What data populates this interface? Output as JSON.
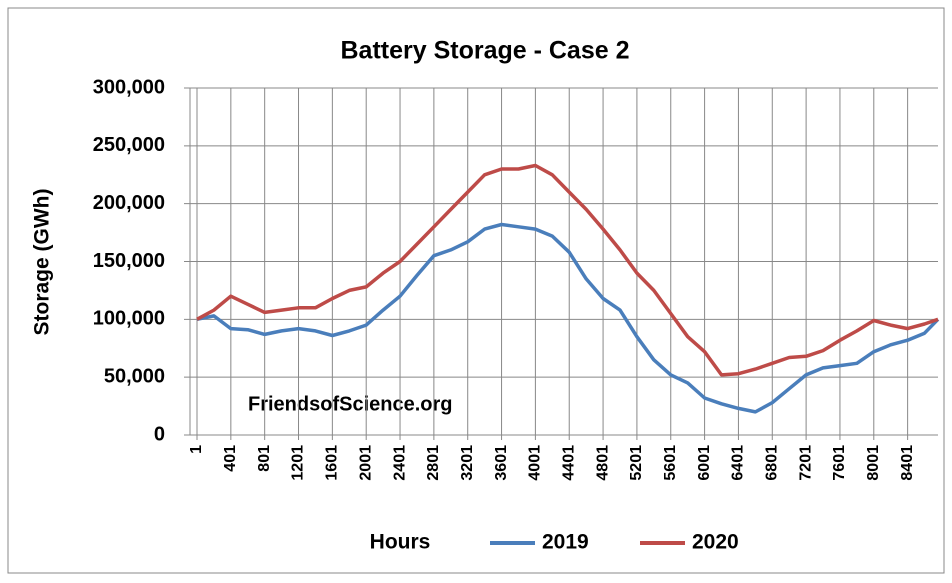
{
  "chart_data": {
    "type": "line",
    "title": "Battery Storage - Case 2",
    "x_label": "Hours",
    "y_label": "Storage (GWh)",
    "annotation": "FriendsofScience.org",
    "x": [
      1,
      201,
      401,
      601,
      801,
      1001,
      1201,
      1401,
      1601,
      1801,
      2001,
      2201,
      2401,
      2601,
      2801,
      3001,
      3201,
      3401,
      3601,
      3801,
      4001,
      4201,
      4401,
      4601,
      4801,
      5001,
      5201,
      5401,
      5601,
      5801,
      6001,
      6201,
      6401,
      6601,
      6801,
      7001,
      7201,
      7401,
      7601,
      7801,
      8001,
      8201,
      8401,
      8601,
      8760
    ],
    "series": [
      {
        "name": "2019",
        "color": "#4a7ebb",
        "values": [
          100000,
          103000,
          92000,
          91000,
          87000,
          90000,
          92000,
          90000,
          86000,
          90000,
          95000,
          108000,
          120000,
          138000,
          155000,
          160000,
          167000,
          178000,
          182000,
          180000,
          178000,
          172000,
          158000,
          135000,
          118000,
          108000,
          85000,
          65000,
          52000,
          45000,
          32000,
          27000,
          23000,
          20000,
          28000,
          40000,
          52000,
          58000,
          60000,
          62000,
          72000,
          78000,
          82000,
          88000,
          100000
        ]
      },
      {
        "name": "2020",
        "color": "#be4b48",
        "values": [
          100000,
          108000,
          120000,
          113000,
          106000,
          108000,
          110000,
          110000,
          118000,
          125000,
          128000,
          140000,
          150000,
          165000,
          180000,
          195000,
          210000,
          225000,
          230000,
          230000,
          233000,
          225000,
          210000,
          195000,
          178000,
          160000,
          140000,
          125000,
          105000,
          85000,
          72000,
          52000,
          53000,
          57000,
          62000,
          67000,
          68000,
          73000,
          82000,
          90000,
          99000,
          95000,
          92000,
          96000,
          100000
        ]
      }
    ],
    "xlim": [
      1,
      8760
    ],
    "xticks": [
      1,
      401,
      801,
      1201,
      1601,
      2001,
      2401,
      2801,
      3201,
      3601,
      4001,
      4401,
      4801,
      5201,
      5601,
      6001,
      6401,
      6801,
      7201,
      7601,
      8001,
      8401
    ],
    "ylim": [
      0,
      300000
    ],
    "yticks": [
      0,
      {
        "value": 50000,
        "label": "50,000"
      },
      {
        "value": 100000,
        "label": "100,000"
      },
      {
        "value": 150000,
        "label": "150,000"
      },
      {
        "value": 200000,
        "label": "200,000"
      },
      {
        "value": 250000,
        "label": "250,000"
      },
      {
        "value": 300000,
        "label": "300,000"
      }
    ],
    "grid": true,
    "legend": "bottom"
  }
}
